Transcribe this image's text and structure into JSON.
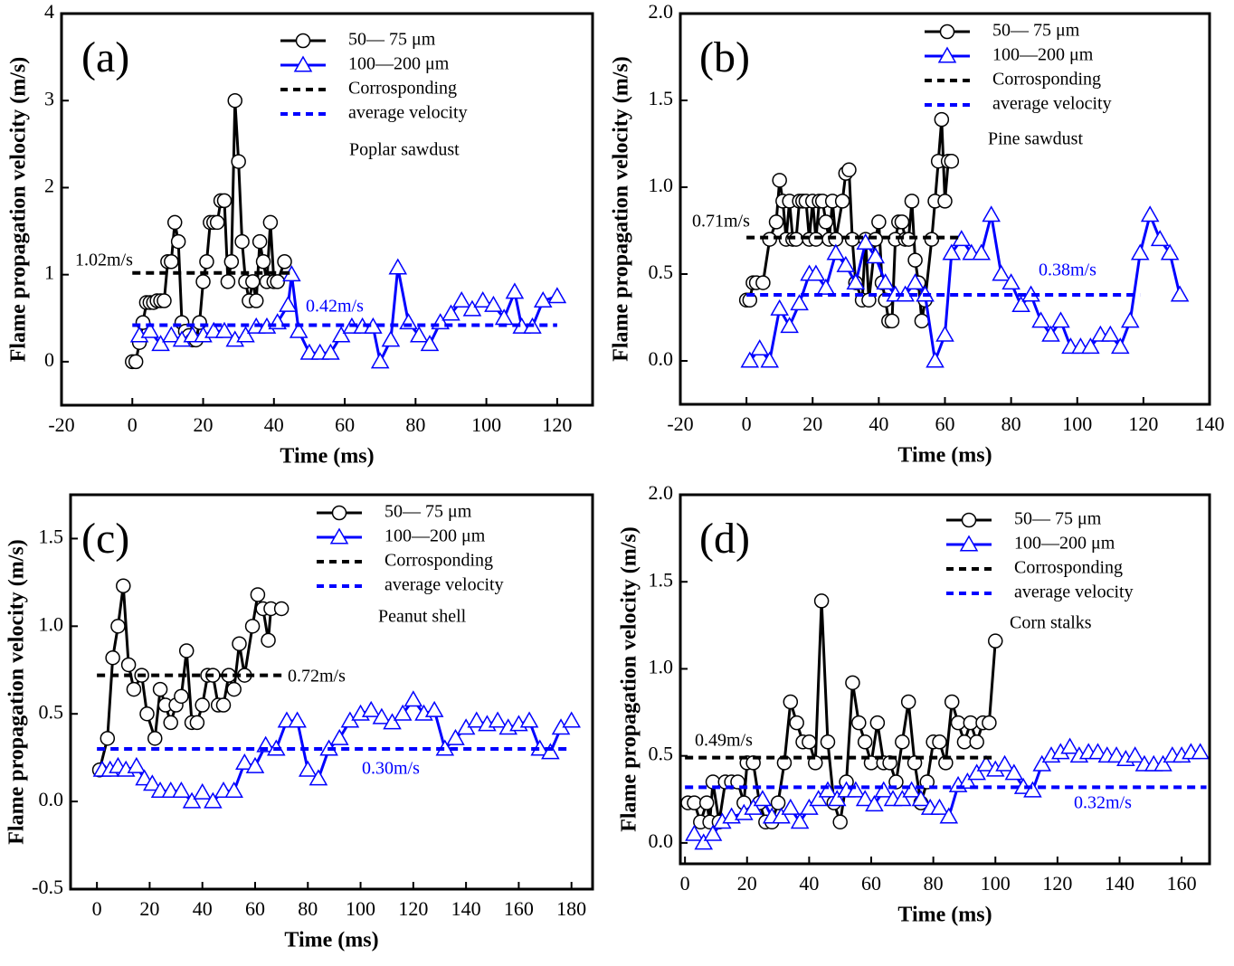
{
  "chart_data": [
    {
      "type": "line",
      "label": "(a)",
      "annotation": "Poplar sawdust",
      "xlabel": "Time (ms)",
      "ylabel": "Flame propagation velocity (m/s)",
      "xlim": [
        -20,
        130
      ],
      "xticks": [
        -20,
        0,
        20,
        40,
        60,
        80,
        100,
        120
      ],
      "ylim": [
        -0.5,
        4
      ],
      "yticks": [
        0,
        1,
        2,
        3,
        4
      ],
      "series": [
        {
          "name": "50— 75 μm",
          "color": "#000000",
          "marker": "circle",
          "x": [
            0,
            1,
            2,
            3,
            4,
            5,
            6,
            7,
            8,
            9,
            10,
            11,
            12,
            13,
            14,
            15,
            16,
            17,
            18,
            19,
            20,
            21,
            22,
            23,
            24,
            25,
            26,
            27,
            28,
            29,
            30,
            31,
            32,
            33,
            34,
            35,
            36,
            37,
            38,
            39,
            40,
            41,
            43
          ],
          "values": [
            0,
            0,
            0.22,
            0.45,
            0.68,
            0.68,
            0.68,
            0.7,
            0.7,
            0.7,
            1.15,
            1.15,
            1.6,
            1.38,
            0.45,
            0.35,
            0.3,
            0.25,
            0.25,
            0.45,
            0.92,
            1.15,
            1.6,
            1.6,
            1.6,
            1.85,
            1.85,
            0.92,
            1.15,
            3.0,
            2.3,
            1.38,
            0.92,
            0.7,
            0.92,
            0.7,
            1.38,
            1.15,
            0.92,
            1.6,
            0.92,
            0.92,
            1.15
          ]
        },
        {
          "name": "100—200 μm",
          "color": "#0000ff",
          "marker": "triangle",
          "x": [
            2,
            5,
            8,
            11,
            14,
            17,
            20,
            23,
            26,
            29,
            32,
            35,
            38,
            41,
            44,
            45,
            47,
            50,
            53,
            56,
            59,
            62,
            65,
            68,
            70,
            73,
            75,
            78,
            81,
            84,
            87,
            90,
            93,
            96,
            99,
            102,
            105,
            108,
            110,
            113,
            116,
            120
          ],
          "values": [
            0.3,
            0.35,
            0.2,
            0.3,
            0.25,
            0.3,
            0.3,
            0.35,
            0.35,
            0.25,
            0.3,
            0.4,
            0.4,
            0.45,
            0.65,
            1.0,
            0.35,
            0.1,
            0.1,
            0.1,
            0.3,
            0.4,
            0.4,
            0.4,
            0.0,
            0.25,
            1.08,
            0.45,
            0.3,
            0.2,
            0.45,
            0.55,
            0.7,
            0.6,
            0.7,
            0.65,
            0.5,
            0.8,
            0.4,
            0.4,
            0.7,
            0.75
          ]
        },
        {
          "name": "Corrosponding",
          "color": "#000000",
          "linestyle": "dashed",
          "x": [
            0,
            45
          ],
          "values": [
            1.02,
            1.02
          ],
          "value_labels": [
            "1.02m/s",
            null
          ]
        },
        {
          "name": "average velocity",
          "color": "#0000ff",
          "linestyle": "dashed",
          "x": [
            0,
            120
          ],
          "values": [
            0.42,
            0.42
          ],
          "value_labels": [
            "0.42m/s",
            null
          ]
        }
      ]
    },
    {
      "type": "line",
      "label": "(b)",
      "annotation": "Pine sawdust",
      "xlabel": "Time (ms)",
      "ylabel": "Flame propagation velocity (m/s)",
      "xlim": [
        -20,
        140
      ],
      "xticks": [
        -20,
        0,
        20,
        40,
        60,
        80,
        100,
        120,
        140
      ],
      "ylim": [
        -0.25,
        2.0
      ],
      "yticks": [
        {
          "value": 0,
          "label": "0.0"
        },
        0.5,
        {
          "value": 1,
          "label": "1.0"
        },
        1.5,
        {
          "value": 2,
          "label": "2.0"
        }
      ],
      "series": [
        {
          "name": "50— 75 μm",
          "color": "#000000",
          "marker": "circle",
          "x": [
            0,
            1,
            2,
            3,
            5,
            7,
            9,
            10,
            11,
            12,
            13,
            14,
            15,
            16,
            17,
            18,
            19,
            20,
            21,
            22,
            23,
            24,
            25,
            26,
            27,
            29,
            30,
            31,
            32,
            33,
            35,
            36,
            37,
            39,
            40,
            41,
            42,
            43,
            44,
            45,
            46,
            47,
            48,
            49,
            50,
            51,
            52,
            53,
            54,
            56,
            57,
            58,
            59,
            60,
            61,
            62
          ],
          "values": [
            0.35,
            0.35,
            0.45,
            0.45,
            0.45,
            0.7,
            0.8,
            1.04,
            0.92,
            0.7,
            0.92,
            0.7,
            0.7,
            0.92,
            0.92,
            0.92,
            0.7,
            0.92,
            0.7,
            0.92,
            0.92,
            0.8,
            0.7,
            0.92,
            0.7,
            0.92,
            1.08,
            1.1,
            0.7,
            0.45,
            0.35,
            0.7,
            0.35,
            0.7,
            0.8,
            0.45,
            0.35,
            0.23,
            0.23,
            0.7,
            0.8,
            0.8,
            0.7,
            0.7,
            0.92,
            0.58,
            0.45,
            0.23,
            0.35,
            0.7,
            0.92,
            1.15,
            1.39,
            0.92,
            1.15,
            1.15
          ]
        },
        {
          "name": "100—200 μm",
          "color": "#0000ff",
          "marker": "triangle",
          "x": [
            1,
            4,
            7,
            10,
            13,
            16,
            19,
            21,
            24,
            27,
            30,
            33,
            36,
            39,
            42,
            45,
            48,
            51,
            54,
            57,
            60,
            62,
            65,
            68,
            71,
            74,
            77,
            80,
            83,
            86,
            89,
            92,
            95,
            98,
            101,
            104,
            107,
            110,
            113,
            116,
            119,
            122,
            125,
            128,
            131
          ],
          "values": [
            0,
            0.07,
            0,
            0.3,
            0.2,
            0.33,
            0.5,
            0.5,
            0.42,
            0.62,
            0.55,
            0.45,
            0.68,
            0.6,
            0.45,
            0.38,
            0.38,
            0.45,
            0.38,
            0,
            0.15,
            0.62,
            0.7,
            0.62,
            0.62,
            0.84,
            0.5,
            0.45,
            0.32,
            0.38,
            0.23,
            0.15,
            0.23,
            0.08,
            0.08,
            0.08,
            0.15,
            0.15,
            0.08,
            0.23,
            0.62,
            0.84,
            0.7,
            0.62,
            0.38
          ]
        },
        {
          "name": "Corrosponding",
          "color": "#000000",
          "linestyle": "dashed",
          "x": [
            0,
            64
          ],
          "values": [
            0.71,
            0.71
          ],
          "value_labels": [
            "0.71m/s",
            null
          ]
        },
        {
          "name": "average velocity",
          "color": "#0000ff",
          "linestyle": "dashed",
          "x": [
            0,
            119
          ],
          "values": [
            0.38,
            0.38
          ],
          "value_labels": [
            "0.38m/s",
            null
          ]
        }
      ]
    },
    {
      "type": "line",
      "label": "(c)",
      "annotation": "Peanut shell",
      "xlabel": "Time (ms)",
      "ylabel": "Flame propagation velocity (m/s)",
      "xlim": [
        -10,
        188
      ],
      "xticks": [
        0,
        20,
        40,
        60,
        80,
        100,
        120,
        140,
        160,
        180
      ],
      "ylim": [
        -0.5,
        1.75
      ],
      "yticks": [
        -0.5,
        {
          "value": 0,
          "label": "0.0"
        },
        0.5,
        {
          "value": 1,
          "label": "1.0"
        },
        1.5
      ],
      "series": [
        {
          "name": "50— 75 μm",
          "color": "#000000",
          "marker": "circle",
          "x": [
            1,
            4,
            6,
            8,
            10,
            12,
            14,
            17,
            19,
            22,
            24,
            26,
            28,
            30,
            32,
            34,
            36,
            38,
            40,
            42,
            44,
            46,
            48,
            50,
            52,
            54,
            56,
            59,
            61,
            63,
            65,
            66,
            70
          ],
          "values": [
            0.18,
            0.36,
            0.82,
            1.0,
            1.23,
            0.78,
            0.64,
            0.72,
            0.5,
            0.36,
            0.64,
            0.55,
            0.45,
            0.55,
            0.6,
            0.86,
            0.45,
            0.45,
            0.55,
            0.72,
            0.72,
            0.55,
            0.55,
            0.72,
            0.64,
            0.9,
            0.72,
            1.0,
            1.18,
            1.1,
            0.92,
            1.1,
            1.1
          ]
        },
        {
          "name": "100—200 μm",
          "color": "#0000ff",
          "marker": "triangle",
          "x": [
            2,
            5,
            8,
            11,
            15,
            18,
            21,
            24,
            28,
            32,
            36,
            40,
            44,
            48,
            52,
            56,
            60,
            64,
            68,
            72,
            76,
            80,
            84,
            88,
            92,
            96,
            100,
            104,
            108,
            112,
            116,
            120,
            124,
            128,
            132,
            136,
            140,
            144,
            148,
            152,
            156,
            160,
            164,
            168,
            172,
            176,
            180
          ],
          "values": [
            0.18,
            0.18,
            0.2,
            0.18,
            0.2,
            0.13,
            0.1,
            0.06,
            0.06,
            0.06,
            0.0,
            0.05,
            0.0,
            0.06,
            0.06,
            0.22,
            0.2,
            0.32,
            0.3,
            0.46,
            0.46,
            0.18,
            0.13,
            0.3,
            0.36,
            0.46,
            0.5,
            0.52,
            0.48,
            0.45,
            0.5,
            0.58,
            0.5,
            0.52,
            0.3,
            0.36,
            0.42,
            0.46,
            0.44,
            0.46,
            0.42,
            0.44,
            0.46,
            0.3,
            0.28,
            0.42,
            0.46
          ]
        },
        {
          "name": "Corrosponding",
          "color": "#000000",
          "linestyle": "dashed",
          "x": [
            0,
            72
          ],
          "values": [
            0.72,
            0.72
          ],
          "value_labels": [
            "0.72m/s",
            null
          ]
        },
        {
          "name": "average velocity",
          "color": "#0000ff",
          "linestyle": "dashed",
          "x": [
            0,
            180
          ],
          "values": [
            0.3,
            0.3
          ],
          "value_labels": [
            "0.30m/s",
            null
          ]
        }
      ]
    },
    {
      "type": "line",
      "label": "(d)",
      "annotation": "Corn stalks",
      "xlabel": "Time (ms)",
      "ylabel": "Flame propagation velocity (m/s)",
      "xlim": [
        -1.5,
        169
      ],
      "xticks": [
        0,
        20,
        40,
        60,
        80,
        100,
        120,
        140,
        160
      ],
      "ylim": [
        -0.12,
        2.0
      ],
      "yticks": [
        {
          "value": 0,
          "label": "0.0"
        },
        0.5,
        {
          "value": 1,
          "label": "1.0"
        },
        1.5,
        {
          "value": 2,
          "label": "2.0"
        }
      ],
      "series": [
        {
          "name": "50— 75 μm",
          "color": "#000000",
          "marker": "circle",
          "x": [
            1,
            3,
            5,
            7,
            8,
            9,
            11,
            13,
            15,
            17,
            19,
            20,
            22,
            24,
            26,
            28,
            30,
            32,
            34,
            36,
            38,
            40,
            42,
            44,
            46,
            48,
            50,
            52,
            54,
            56,
            58,
            60,
            62,
            64,
            66,
            68,
            70,
            72,
            74,
            76,
            78,
            80,
            82,
            84,
            86,
            88,
            90,
            92,
            94,
            96,
            98,
            100
          ],
          "values": [
            0.23,
            0.23,
            0.12,
            0.23,
            0.12,
            0.35,
            0.12,
            0.35,
            0.35,
            0.35,
            0.23,
            0.46,
            0.46,
            0.23,
            0.12,
            0.12,
            0.23,
            0.46,
            0.81,
            0.69,
            0.58,
            0.58,
            0.46,
            1.39,
            0.58,
            0.23,
            0.12,
            0.35,
            0.92,
            0.69,
            0.58,
            0.46,
            0.69,
            0.46,
            0.46,
            0.35,
            0.58,
            0.81,
            0.46,
            0.23,
            0.35,
            0.58,
            0.58,
            0.46,
            0.81,
            0.69,
            0.58,
            0.69,
            0.58,
            0.69,
            0.69,
            1.16
          ]
        },
        {
          "name": "100—200 μm",
          "color": "#0000ff",
          "marker": "triangle",
          "x": [
            3,
            6,
            9,
            12,
            15,
            19,
            22,
            25,
            28,
            31,
            34,
            37,
            40,
            43,
            46,
            49,
            52,
            55,
            58,
            61,
            64,
            67,
            70,
            73,
            76,
            79,
            82,
            85,
            88,
            91,
            94,
            97,
            100,
            103,
            106,
            109,
            112,
            115,
            118,
            121,
            124,
            127,
            130,
            133,
            136,
            139,
            142,
            145,
            148,
            151,
            154,
            157,
            160,
            163,
            166
          ],
          "values": [
            0.05,
            0.0,
            0.05,
            0.12,
            0.15,
            0.17,
            0.2,
            0.25,
            0.15,
            0.15,
            0.2,
            0.12,
            0.2,
            0.25,
            0.3,
            0.25,
            0.3,
            0.3,
            0.25,
            0.22,
            0.3,
            0.25,
            0.25,
            0.3,
            0.25,
            0.2,
            0.2,
            0.15,
            0.33,
            0.35,
            0.4,
            0.45,
            0.42,
            0.45,
            0.4,
            0.32,
            0.3,
            0.45,
            0.5,
            0.52,
            0.55,
            0.5,
            0.52,
            0.52,
            0.5,
            0.5,
            0.48,
            0.5,
            0.45,
            0.45,
            0.45,
            0.5,
            0.5,
            0.52,
            0.52
          ]
        },
        {
          "name": "Corrosponding",
          "color": "#000000",
          "linestyle": "dashed",
          "x": [
            0,
            100
          ],
          "values": [
            0.49,
            0.49
          ],
          "value_labels": [
            "0.49m/s",
            null
          ]
        },
        {
          "name": "average velocity",
          "color": "#0000ff",
          "linestyle": "dashed",
          "x": [
            0,
            168
          ],
          "values": [
            0.32,
            0.32
          ],
          "value_labels": [
            "0.32m/s",
            null
          ]
        }
      ]
    }
  ]
}
